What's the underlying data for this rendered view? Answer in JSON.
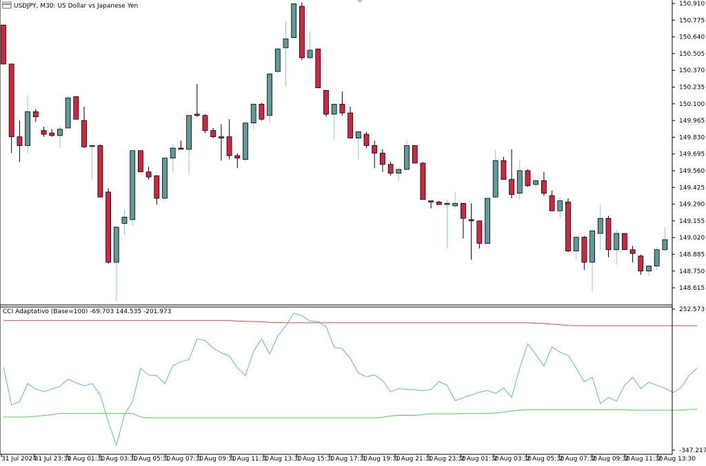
{
  "header": {
    "symbol_text": "USDJPY, M30:  US Dollar vs Japanese Yen",
    "indicator_text": "CCI Adaptativo (Base=100) -69.703 144.535 -201.973"
  },
  "colors": {
    "bull": "#5f9a9b",
    "bear": "#d2263e",
    "wick_bull": "#8fd0b2",
    "cci_line": "#5db6dc",
    "upper_band": "#d44a3c",
    "lower_band": "#4fd04f",
    "axis": "#000000"
  },
  "chart_data": [
    {
      "type": "candlestick",
      "title": "USDJPY, M30:  US Dollar vs Japanese Yen",
      "ylim": [
        148.52,
        150.95
      ],
      "y_ticks": [
        "150.910",
        "150.775",
        "150.640",
        "150.505",
        "150.370",
        "150.235",
        "150.100",
        "149.965",
        "149.830",
        "149.695",
        "149.560",
        "149.425",
        "149.290",
        "149.155",
        "149.020",
        "148.885",
        "148.750",
        "148.615"
      ],
      "x_ticks": [
        "31 Jul 2024",
        "31 Jul 23:30",
        "1 Aug 01:30",
        "1 Aug 03:30",
        "1 Aug 05:30",
        "1 Aug 07:30",
        "1 Aug 09:30",
        "1 Aug 11:30",
        "1 Aug 13:30",
        "1 Aug 15:30",
        "1 Aug 17:30",
        "1 Aug 19:30",
        "1 Aug 21:30",
        "1 Aug 23:30",
        "2 Aug 01:30",
        "2 Aug 03:30",
        "2 Aug 05:30",
        "2 Aug 07:30",
        "2 Aug 09:30",
        "2 Aug 11:30",
        "2 Aug 13:30"
      ],
      "candles": [
        {
          "o": 150.75,
          "h": 150.75,
          "l": 150.44,
          "c": 150.44
        },
        {
          "o": 150.44,
          "h": 150.44,
          "l": 149.73,
          "c": 149.86
        },
        {
          "o": 149.86,
          "h": 149.99,
          "l": 149.66,
          "c": 149.79
        },
        {
          "o": 149.79,
          "h": 150.19,
          "l": 149.73,
          "c": 150.06
        },
        {
          "o": 150.06,
          "h": 150.08,
          "l": 149.98,
          "c": 150.02
        },
        {
          "o": 149.91,
          "h": 149.94,
          "l": 149.86,
          "c": 149.88
        },
        {
          "o": 149.89,
          "h": 149.92,
          "l": 149.86,
          "c": 149.87
        },
        {
          "o": 149.87,
          "h": 149.95,
          "l": 149.77,
          "c": 149.92
        },
        {
          "o": 149.93,
          "h": 150.18,
          "l": 149.93,
          "c": 150.17
        },
        {
          "o": 150.18,
          "h": 150.18,
          "l": 150.0,
          "c": 150.0
        },
        {
          "o": 149.99,
          "h": 150.1,
          "l": 149.77,
          "c": 149.78
        },
        {
          "o": 149.79,
          "h": 149.81,
          "l": 149.52,
          "c": 149.79
        },
        {
          "o": 149.79,
          "h": 149.8,
          "l": 149.38,
          "c": 149.38
        },
        {
          "o": 149.42,
          "h": 149.45,
          "l": 148.85,
          "c": 148.86
        },
        {
          "o": 148.86,
          "h": 149.15,
          "l": 148.55,
          "c": 149.14
        },
        {
          "o": 149.17,
          "h": 149.28,
          "l": 149.08,
          "c": 149.22
        },
        {
          "o": 149.2,
          "h": 149.75,
          "l": 149.15,
          "c": 149.75
        },
        {
          "o": 149.75,
          "h": 149.75,
          "l": 149.58,
          "c": 149.58
        },
        {
          "o": 149.58,
          "h": 149.62,
          "l": 149.52,
          "c": 149.54
        },
        {
          "o": 149.55,
          "h": 149.55,
          "l": 149.32,
          "c": 149.37
        },
        {
          "o": 149.37,
          "h": 149.69,
          "l": 149.35,
          "c": 149.69
        },
        {
          "o": 149.69,
          "h": 149.8,
          "l": 149.58,
          "c": 149.77
        },
        {
          "o": 149.77,
          "h": 149.83,
          "l": 149.76,
          "c": 149.76
        },
        {
          "o": 149.76,
          "h": 150.03,
          "l": 149.56,
          "c": 150.03
        },
        {
          "o": 150.04,
          "h": 150.28,
          "l": 150.02,
          "c": 150.03
        },
        {
          "o": 150.03,
          "h": 150.04,
          "l": 149.89,
          "c": 149.91
        },
        {
          "o": 149.91,
          "h": 149.93,
          "l": 149.85,
          "c": 149.86
        },
        {
          "o": 149.86,
          "h": 149.96,
          "l": 149.67,
          "c": 149.85
        },
        {
          "o": 149.86,
          "h": 150.0,
          "l": 149.68,
          "c": 149.71
        },
        {
          "o": 149.71,
          "h": 149.73,
          "l": 149.61,
          "c": 149.69
        },
        {
          "o": 149.68,
          "h": 149.97,
          "l": 149.66,
          "c": 149.97
        },
        {
          "o": 149.97,
          "h": 150.12,
          "l": 149.92,
          "c": 150.12
        },
        {
          "o": 150.12,
          "h": 150.13,
          "l": 149.99,
          "c": 150.0
        },
        {
          "o": 150.03,
          "h": 150.37,
          "l": 149.97,
          "c": 150.36
        },
        {
          "o": 150.38,
          "h": 150.57,
          "l": 150.37,
          "c": 150.56
        },
        {
          "o": 150.57,
          "h": 150.78,
          "l": 150.26,
          "c": 150.64
        },
        {
          "o": 150.65,
          "h": 150.92,
          "l": 150.65,
          "c": 150.92
        },
        {
          "o": 150.9,
          "h": 150.93,
          "l": 150.47,
          "c": 150.49
        },
        {
          "o": 150.49,
          "h": 150.7,
          "l": 150.48,
          "c": 150.55
        },
        {
          "o": 150.56,
          "h": 150.56,
          "l": 150.25,
          "c": 150.25
        },
        {
          "o": 150.23,
          "h": 150.23,
          "l": 150.02,
          "c": 150.04
        },
        {
          "o": 150.04,
          "h": 150.12,
          "l": 149.84,
          "c": 150.12
        },
        {
          "o": 150.12,
          "h": 150.22,
          "l": 150.03,
          "c": 150.05
        },
        {
          "o": 150.05,
          "h": 150.1,
          "l": 149.85,
          "c": 149.85
        },
        {
          "o": 149.85,
          "h": 149.91,
          "l": 149.68,
          "c": 149.9
        },
        {
          "o": 149.88,
          "h": 149.9,
          "l": 149.77,
          "c": 149.79
        },
        {
          "o": 149.79,
          "h": 149.83,
          "l": 149.61,
          "c": 149.73
        },
        {
          "o": 149.73,
          "h": 149.76,
          "l": 149.58,
          "c": 149.64
        },
        {
          "o": 149.64,
          "h": 149.66,
          "l": 149.55,
          "c": 149.57
        },
        {
          "o": 149.57,
          "h": 149.62,
          "l": 149.51,
          "c": 149.6
        },
        {
          "o": 149.6,
          "h": 149.84,
          "l": 149.59,
          "c": 149.79
        },
        {
          "o": 149.79,
          "h": 149.79,
          "l": 149.65,
          "c": 149.65
        },
        {
          "o": 149.65,
          "h": 149.66,
          "l": 149.36,
          "c": 149.36
        },
        {
          "o": 149.35,
          "h": 149.35,
          "l": 149.29,
          "c": 149.34
        },
        {
          "o": 149.34,
          "h": 149.35,
          "l": 149.32,
          "c": 149.32
        },
        {
          "o": 149.32,
          "h": 149.36,
          "l": 148.97,
          "c": 149.33
        },
        {
          "o": 149.31,
          "h": 149.42,
          "l": 149.29,
          "c": 149.33
        },
        {
          "o": 149.33,
          "h": 149.33,
          "l": 149.05,
          "c": 149.21
        },
        {
          "o": 149.2,
          "h": 149.33,
          "l": 148.88,
          "c": 149.19
        },
        {
          "o": 149.19,
          "h": 149.19,
          "l": 148.97,
          "c": 149.01
        },
        {
          "o": 149.01,
          "h": 149.37,
          "l": 149.0,
          "c": 149.37
        },
        {
          "o": 149.38,
          "h": 149.76,
          "l": 149.37,
          "c": 149.67
        },
        {
          "o": 149.67,
          "h": 149.7,
          "l": 149.52,
          "c": 149.52
        },
        {
          "o": 149.52,
          "h": 149.76,
          "l": 149.37,
          "c": 149.4
        },
        {
          "o": 149.41,
          "h": 149.68,
          "l": 149.36,
          "c": 149.59
        },
        {
          "o": 149.59,
          "h": 149.6,
          "l": 149.46,
          "c": 149.47
        },
        {
          "o": 149.48,
          "h": 149.51,
          "l": 149.45,
          "c": 149.51
        },
        {
          "o": 149.51,
          "h": 149.58,
          "l": 149.39,
          "c": 149.41
        },
        {
          "o": 149.39,
          "h": 149.43,
          "l": 149.27,
          "c": 149.27
        },
        {
          "o": 149.27,
          "h": 149.38,
          "l": 149.21,
          "c": 149.35
        },
        {
          "o": 149.34,
          "h": 149.37,
          "l": 148.94,
          "c": 148.95
        },
        {
          "o": 148.95,
          "h": 149.06,
          "l": 148.88,
          "c": 149.06
        },
        {
          "o": 149.06,
          "h": 149.07,
          "l": 148.8,
          "c": 148.86
        },
        {
          "o": 148.86,
          "h": 149.12,
          "l": 148.63,
          "c": 149.11
        },
        {
          "o": 149.09,
          "h": 149.32,
          "l": 148.96,
          "c": 149.21
        },
        {
          "o": 149.21,
          "h": 149.23,
          "l": 148.9,
          "c": 148.96
        },
        {
          "o": 148.96,
          "h": 149.12,
          "l": 148.84,
          "c": 149.09
        },
        {
          "o": 149.09,
          "h": 149.09,
          "l": 148.96,
          "c": 148.96
        },
        {
          "o": 148.96,
          "h": 148.99,
          "l": 148.86,
          "c": 148.93
        },
        {
          "o": 148.91,
          "h": 148.92,
          "l": 148.76,
          "c": 148.79
        },
        {
          "o": 148.79,
          "h": 148.84,
          "l": 148.75,
          "c": 148.83
        },
        {
          "o": 148.83,
          "h": 148.98,
          "l": 148.8,
          "c": 148.96
        },
        {
          "o": 148.96,
          "h": 149.14,
          "l": 148.95,
          "c": 149.04
        }
      ]
    },
    {
      "type": "line",
      "title": "CCI Adaptativo (Base=100) -69.703 144.535 -201.973",
      "ylim": [
        -347.217,
        252.573
      ],
      "y_ticks": [
        "252.573",
        "-347.217"
      ],
      "series": [
        {
          "name": "CCI",
          "values": [
            10,
            -145,
            -132,
            -58,
            -80,
            -91,
            -80,
            -69,
            -40,
            -55,
            -67,
            -58,
            -105,
            -215,
            -310,
            -185,
            -132,
            5,
            -23,
            -25,
            -58,
            15,
            32,
            40,
            125,
            118,
            87,
            68,
            55,
            6,
            -25,
            75,
            125,
            63,
            137,
            178,
            230,
            220,
            198,
            195,
            175,
            90,
            85,
            45,
            -14,
            -30,
            -22,
            -45,
            -92,
            -78,
            -82,
            -83,
            -87,
            -82,
            -50,
            -65,
            -128,
            -115,
            -105,
            -93,
            -86,
            -98,
            -76,
            -115,
            5,
            105,
            60,
            14,
            92,
            70,
            58,
            5,
            -50,
            -32,
            -140,
            -115,
            -130,
            -65,
            -32,
            -78,
            -52,
            -65,
            -77,
            -95,
            -75,
            -24,
            6
          ]
        },
        {
          "name": "Upper",
          "values": [
            200,
            200,
            200,
            200,
            200,
            200,
            200,
            200,
            200,
            200,
            200,
            200,
            200,
            200,
            200,
            200,
            200,
            200,
            200,
            200,
            200,
            200,
            200,
            200,
            200,
            200,
            200,
            200,
            200,
            198,
            197,
            196,
            195,
            193,
            192,
            191,
            191,
            191,
            191,
            191,
            191,
            191,
            191,
            191,
            191,
            191,
            191,
            191,
            191,
            191,
            191,
            191,
            191,
            191,
            191,
            191,
            191,
            191,
            191,
            191,
            191,
            191,
            191,
            191,
            191,
            191,
            189,
            188,
            185,
            183,
            180,
            179,
            179,
            179,
            179,
            179,
            179,
            179,
            179,
            179,
            179,
            179,
            179,
            179,
            179,
            179,
            179
          ]
        },
        {
          "name": "Lower",
          "values": [
            -195,
            -195,
            -195,
            -195,
            -192,
            -188,
            -185,
            -180,
            -180,
            -180,
            -180,
            -180,
            -180,
            -180,
            -180,
            -180,
            -180,
            -195,
            -198,
            -198,
            -198,
            -198,
            -198,
            -198,
            -198,
            -198,
            -198,
            -198,
            -198,
            -198,
            -198,
            -198,
            -198,
            -198,
            -198,
            -198,
            -198,
            -198,
            -198,
            -198,
            -198,
            -198,
            -198,
            -198,
            -198,
            -198,
            -198,
            -196,
            -190,
            -188,
            -188,
            -188,
            -185,
            -182,
            -182,
            -182,
            -182,
            -180,
            -180,
            -180,
            -180,
            -178,
            -175,
            -170,
            -167,
            -165,
            -165,
            -165,
            -165,
            -165,
            -165,
            -165,
            -165,
            -165,
            -165,
            -165,
            -165,
            -165,
            -167,
            -167,
            -167,
            -167,
            -167,
            -167,
            -167,
            -164,
            -163
          ]
        }
      ]
    }
  ]
}
